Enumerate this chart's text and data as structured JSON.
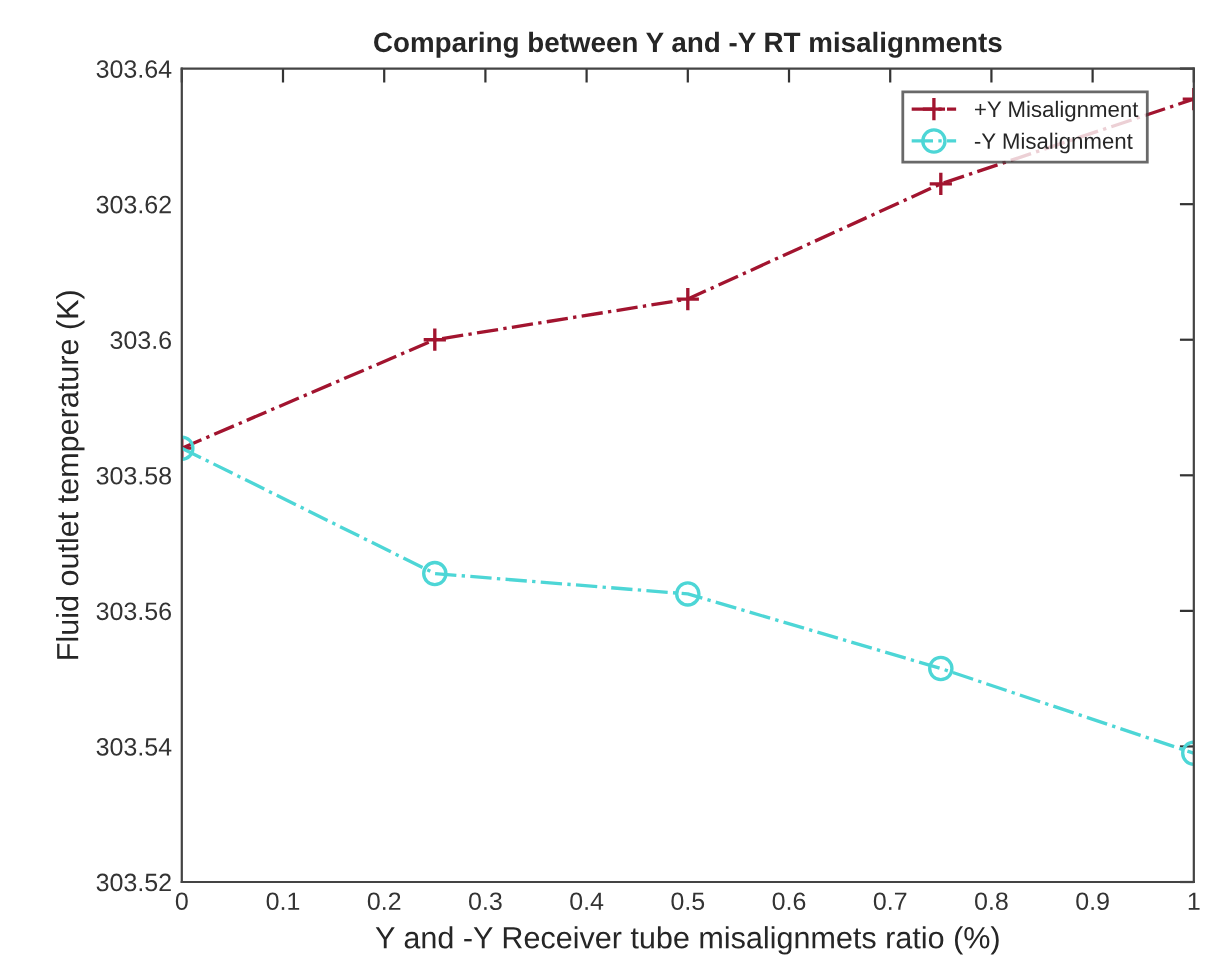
{
  "chart_data": {
    "type": "line",
    "title": "Comparing between Y and -Y RT misalignments",
    "xlabel": "Y and -Y Receiver tube misalignmets ratio (%)",
    "ylabel": "Fluid outlet temperature (K)",
    "x": [
      0,
      0.25,
      0.5,
      0.75,
      1
    ],
    "series": [
      {
        "name": "+Y Misalignment",
        "color": "#a2142f",
        "marker": "cross",
        "line_style": "dashed",
        "values": [
          303.584,
          303.6,
          303.606,
          303.623,
          303.6355
        ]
      },
      {
        "name": "-Y Misalignment",
        "color": "#4dd6d6",
        "marker": "circle",
        "line_style": "dashed",
        "values": [
          303.584,
          303.5655,
          303.5625,
          303.5515,
          303.539
        ]
      }
    ],
    "xlim": [
      0,
      1
    ],
    "xticks": [
      0,
      0.1,
      0.2,
      0.3,
      0.4,
      0.5,
      0.6,
      0.7,
      0.8,
      0.9,
      1
    ],
    "ylim": [
      303.52,
      303.64
    ],
    "yticks": [
      303.52,
      303.54,
      303.56,
      303.58,
      303.6,
      303.62,
      303.64
    ],
    "grid": false,
    "legend": "top right"
  }
}
